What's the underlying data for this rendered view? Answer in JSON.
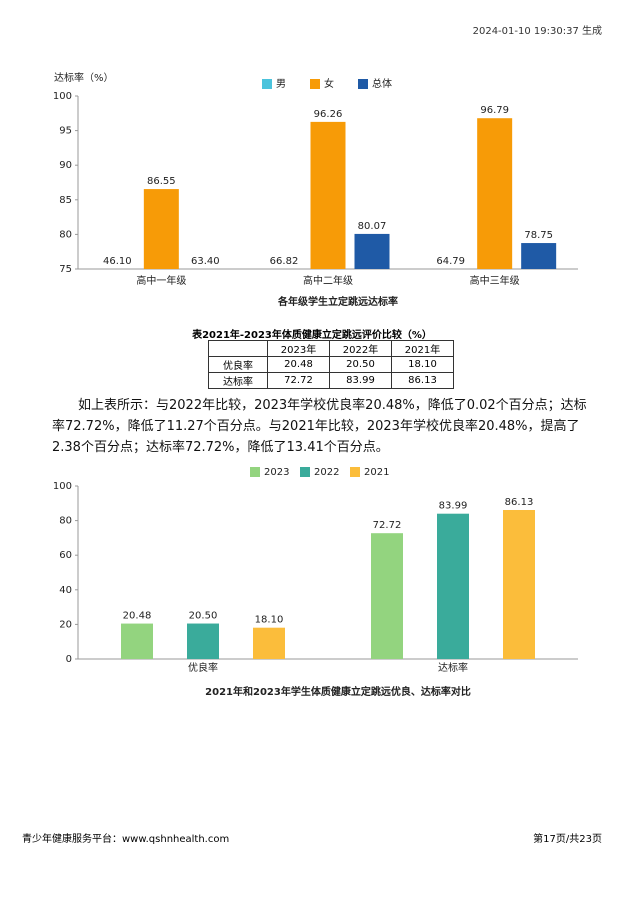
{
  "header": {
    "timestamp": "2024-01-10 19:30:37 生成"
  },
  "chart_data": [
    {
      "type": "bar",
      "title": "各年级学生立定跳远达标率",
      "ylabel": "达标率（%）",
      "categories": [
        "高中一年级",
        "高中二年级",
        "高中三年级"
      ],
      "series": [
        {
          "name": "男",
          "color": "#4bc3dc",
          "values": [
            46.1,
            66.82,
            64.79
          ],
          "value_labels": [
            "46.10",
            "66.82",
            "64.79"
          ]
        },
        {
          "name": "女",
          "color": "#f79b07",
          "values": [
            86.55,
            96.26,
            96.79
          ],
          "value_labels": [
            "86.55",
            "96.26",
            "96.79"
          ]
        },
        {
          "name": "总体",
          "color": "#1f5aa6",
          "values": [
            63.4,
            80.07,
            78.75
          ],
          "value_labels": [
            "63.40",
            "80.07",
            "78.75"
          ]
        }
      ],
      "ylim": [
        75,
        100
      ],
      "yticks": [
        75,
        80,
        85,
        90,
        95,
        100
      ]
    },
    {
      "type": "bar",
      "title": "2021年和2023年学生体质健康立定跳远优良、达标率对比",
      "categories": [
        "优良率",
        "达标率"
      ],
      "series": [
        {
          "name": "2023",
          "color": "#93d47f",
          "values": [
            20.48,
            72.72
          ],
          "value_labels": [
            "20.48",
            "72.72"
          ]
        },
        {
          "name": "2022",
          "color": "#3aab9b",
          "values": [
            20.5,
            83.99
          ],
          "value_labels": [
            "20.50",
            "83.99"
          ]
        },
        {
          "name": "2021",
          "color": "#fbbd3b",
          "values": [
            18.1,
            86.13
          ],
          "value_labels": [
            "18.10",
            "86.13"
          ]
        }
      ],
      "ylim": [
        0,
        100
      ],
      "yticks": [
        0,
        20,
        40,
        60,
        80,
        100
      ]
    }
  ],
  "table": {
    "title": "表2021年-2023年体质健康立定跳远评价比较（%）",
    "header": [
      "2023年",
      "2022年",
      "2021年"
    ],
    "rows": [
      {
        "label": "优良率",
        "values": [
          "20.48",
          "20.50",
          "18.10"
        ]
      },
      {
        "label": "达标率",
        "values": [
          "72.72",
          "83.99",
          "86.13"
        ]
      }
    ]
  },
  "paragraph": "如上表所示：与2022年比较，2023年学校优良率20.48%，降低了0.02个百分点；达标率72.72%，降低了11.27个百分点。与2021年比较，2023年学校优良率20.48%，提高了2.38个百分点；达标率72.72%，降低了13.41个百分点。",
  "footer": {
    "site": "青少年健康服务平台：www.qshnhealth.com",
    "page": "第17页/共23页"
  }
}
